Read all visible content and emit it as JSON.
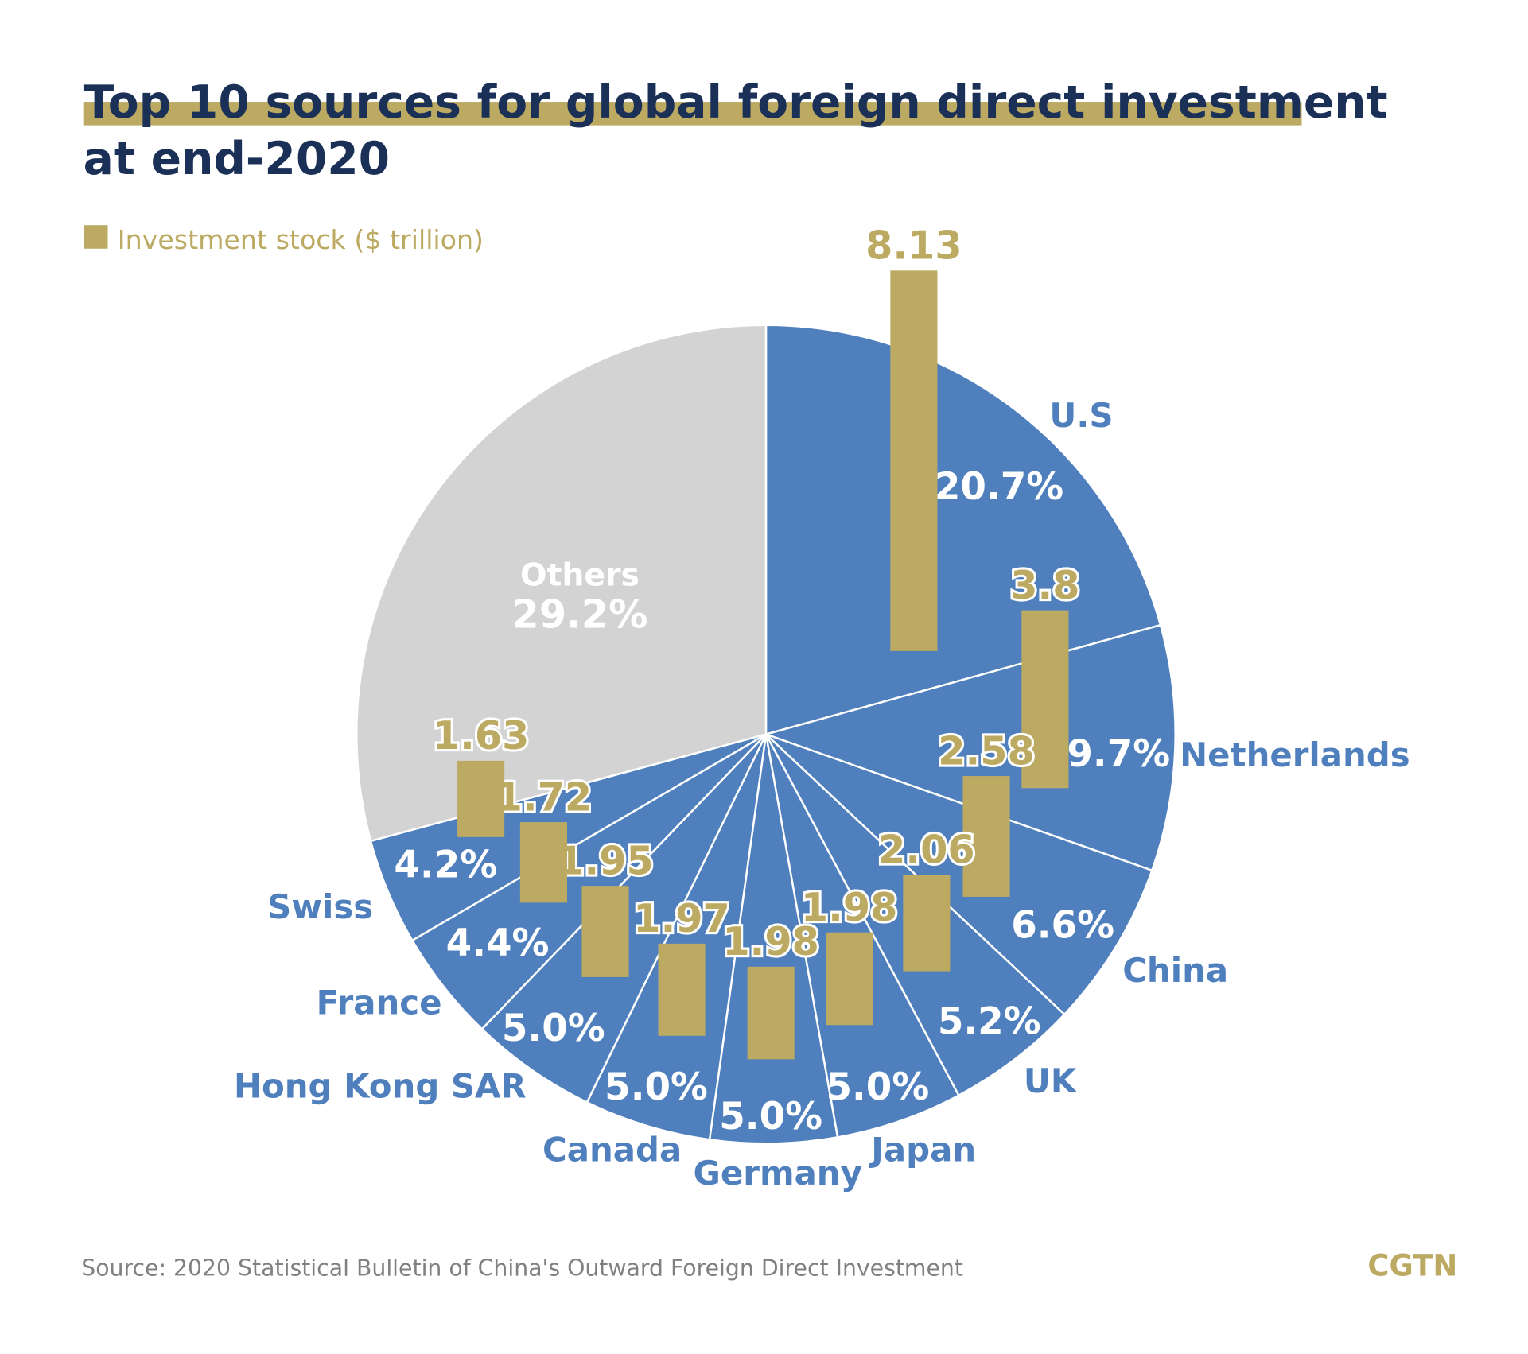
{
  "title_line1": "Top 10 sources for global foreign direct investment",
  "title_line2": "at end-2020",
  "legend": "Investment stock ($ trillion)",
  "source": "Source: 2020 Statistical Bulletin of China's Outward Foreign Direct Investment",
  "logo": "CGTN",
  "colors": {
    "title": "#1b3057",
    "accent": "#bcaa63",
    "slice": "#4f80bd",
    "others": "#d3d3d3",
    "label": "#4f80bd",
    "source": "#808080"
  },
  "chart_data": {
    "type": "pie",
    "title": "Top 10 sources for global foreign direct investment at end-2020",
    "start": "12 o'clock, clockwise",
    "slices": [
      {
        "label": "U.S",
        "percent": 20.7,
        "percent_label": "20.7%",
        "investment": 8.13,
        "investment_label": "8.13"
      },
      {
        "label": "Netherlands",
        "percent": 9.7,
        "percent_label": "9.7%",
        "investment": 3.8,
        "investment_label": "3.8"
      },
      {
        "label": "China",
        "percent": 6.6,
        "percent_label": "6.6%",
        "investment": 2.58,
        "investment_label": "2.58"
      },
      {
        "label": "UK",
        "percent": 5.2,
        "percent_label": "5.2%",
        "investment": 2.06,
        "investment_label": "2.06"
      },
      {
        "label": "Japan",
        "percent": 5.0,
        "percent_label": "5.0%",
        "investment": 1.98,
        "investment_label": "1.98"
      },
      {
        "label": "Germany",
        "percent": 5.0,
        "percent_label": "5.0%",
        "investment": 1.98,
        "investment_label": "1.98"
      },
      {
        "label": "Canada",
        "percent": 5.0,
        "percent_label": "5.0%",
        "investment": 1.97,
        "investment_label": "1.97"
      },
      {
        "label": "Hong Kong SAR",
        "percent": 5.0,
        "percent_label": "5.0%",
        "investment": 1.95,
        "investment_label": "1.95"
      },
      {
        "label": "France",
        "percent": 4.4,
        "percent_label": "4.4%",
        "investment": 1.72,
        "investment_label": "1.72"
      },
      {
        "label": "Swiss",
        "percent": 4.2,
        "percent_label": "4.2%",
        "investment": 1.63,
        "investment_label": "1.63"
      },
      {
        "label": "Others",
        "percent": 29.2,
        "percent_label": "29.2%"
      }
    ]
  }
}
